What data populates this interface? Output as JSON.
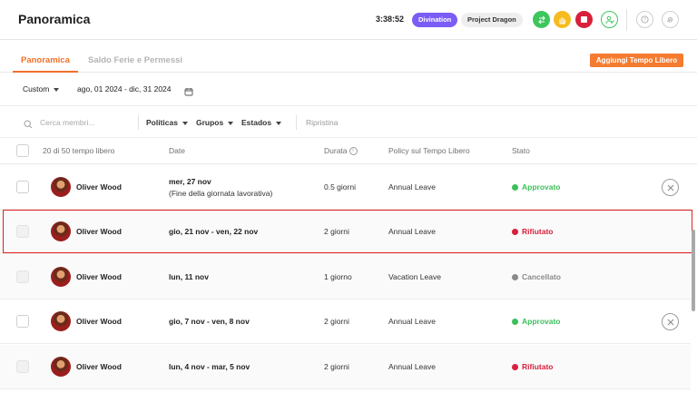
{
  "header": {
    "title": "Panoramica",
    "timer": "3:38:52",
    "workspace_badge": "Divination",
    "project_badge": "Project Dragon",
    "action_icons": [
      "swap-icon",
      "hand-icon",
      "stop-icon",
      "user-check-icon",
      "help-icon",
      "fingerprint-icon"
    ]
  },
  "tabs": [
    {
      "label": "Panoramica",
      "active": true
    },
    {
      "label": "Saldo Ferie e Permessi",
      "active": false
    }
  ],
  "add_button_label": "Aggiungi Tempo Libero",
  "filters": {
    "period_select": "Custom",
    "date_range": "ago, 01 2024 - dic, 31 2024",
    "search_placeholder": "Cerca membri...",
    "politicas": "Políticas",
    "grupos": "Grupos",
    "estados": "Estados",
    "reset": "Ripristina"
  },
  "table": {
    "columns": {
      "count": "20 di 50 tempo libero",
      "date": "Date",
      "durata": "Durata",
      "policy": "Policy sul Tempo Libero",
      "stato": "Stato"
    },
    "rows": [
      {
        "name": "Oliver Wood",
        "date": "mer, 27 nov",
        "date_note": "(Fine della giornata lavorativa)",
        "duration": "0.5 giorni",
        "policy": "Annual Leave",
        "status": "Approvato",
        "status_color": "#3cbf5a",
        "dim": false,
        "cancelable": true
      },
      {
        "name": "Oliver Wood",
        "date": "gio, 21 nov - ven, 22 nov",
        "date_note": "",
        "duration": "2 giorni",
        "policy": "Annual Leave",
        "status": "Rifiutato",
        "status_color": "#d8203c",
        "dim": true,
        "cancelable": false
      },
      {
        "name": "Oliver Wood",
        "date": "lun, 11 nov",
        "date_note": "",
        "duration": "1 giorno",
        "policy": "Vacation Leave",
        "status": "Cancellato",
        "status_color": "#8a8a8a",
        "dim": true,
        "cancelable": false
      },
      {
        "name": "Oliver Wood",
        "date": "gio, 7 nov - ven, 8 nov",
        "date_note": "",
        "duration": "2 giorni",
        "policy": "Annual Leave",
        "status": "Approvato",
        "status_color": "#3cbf5a",
        "dim": false,
        "cancelable": true
      },
      {
        "name": "Oliver Wood",
        "date": "lun, 4 nov - mar, 5 nov",
        "date_note": "",
        "duration": "2 giorni",
        "policy": "Annual Leave",
        "status": "Rifiutato",
        "status_color": "#d8203c",
        "dim": true,
        "cancelable": false
      }
    ]
  },
  "colors": {
    "accent": "#f0702b",
    "highlight": "#e02020"
  }
}
